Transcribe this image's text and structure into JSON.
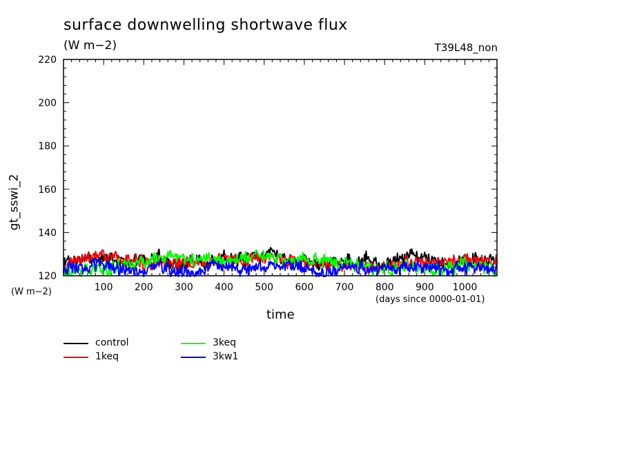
{
  "chart_data": {
    "type": "line",
    "title": "surface downwelling shortwave flux",
    "units": "(W m−2)",
    "run_label": "T39L48_non",
    "ylabel": "gt_sswi_2",
    "ylabel_units": "(W m−2)",
    "xlabel": "time",
    "xlabel_units": "(days since 0000-01-01)",
    "xlim": [
      0,
      1080
    ],
    "ylim": [
      120,
      220
    ],
    "x_ticks": [
      100,
      200,
      300,
      400,
      500,
      600,
      700,
      800,
      900,
      1000
    ],
    "y_ticks": [
      120,
      140,
      160,
      180,
      200,
      220
    ],
    "x_ticks_labels": [
      "100",
      "200",
      "300",
      "400",
      "500",
      "600",
      "700",
      "800",
      "900",
      "1000"
    ],
    "y_ticks_labels": [
      "120",
      "140",
      "160",
      "180",
      "200",
      "220"
    ],
    "legend_placement": "below-left",
    "series": [
      {
        "name": "control",
        "color": "#000000",
        "x": [
          0,
          40,
          80,
          120,
          160,
          200,
          240,
          280,
          320,
          360,
          400,
          440,
          480,
          520,
          560,
          600,
          640,
          680,
          720,
          760,
          800,
          840,
          880,
          920,
          960,
          1000,
          1040,
          1080
        ],
        "values": [
          125,
          128,
          127,
          128,
          126,
          127,
          129,
          124,
          127,
          125,
          128,
          127,
          129,
          132,
          126,
          127,
          125,
          127,
          126,
          128,
          124,
          129,
          130,
          127,
          125,
          128,
          127,
          126
        ]
      },
      {
        "name": "1keq",
        "color": "#ff0000",
        "x": [
          0,
          40,
          80,
          120,
          160,
          200,
          240,
          280,
          320,
          360,
          400,
          440,
          480,
          520,
          560,
          600,
          640,
          680,
          720,
          760,
          800,
          840,
          880,
          920,
          960,
          1000,
          1040,
          1080
        ],
        "values": [
          124,
          127,
          129,
          129,
          127,
          126,
          127,
          126,
          125,
          126,
          127,
          127,
          128,
          129,
          127,
          126,
          125,
          126,
          125,
          124,
          124,
          126,
          126,
          125,
          126,
          127,
          127,
          126
        ]
      },
      {
        "name": "3keq",
        "color": "#00ff00",
        "x": [
          0,
          40,
          80,
          120,
          160,
          200,
          240,
          280,
          320,
          360,
          400,
          440,
          480,
          520,
          560,
          600,
          640,
          680,
          720,
          760,
          800,
          840,
          880,
          920,
          960,
          1000,
          1040,
          1080
        ],
        "values": [
          121,
          122,
          123,
          124,
          125,
          127,
          128,
          129,
          127,
          128,
          127,
          128,
          129,
          128,
          127,
          128,
          127,
          126,
          125,
          124,
          123,
          125,
          124,
          123,
          124,
          125,
          124,
          123
        ]
      },
      {
        "name": "3kw1",
        "color": "#0000ff",
        "x": [
          0,
          40,
          80,
          120,
          160,
          200,
          240,
          280,
          320,
          360,
          400,
          440,
          480,
          520,
          560,
          600,
          640,
          680,
          720,
          760,
          800,
          840,
          880,
          920,
          960,
          1000,
          1040,
          1080
        ],
        "values": [
          123,
          124,
          125,
          124,
          123,
          123,
          124,
          122,
          121,
          124,
          125,
          123,
          124,
          125,
          124,
          123,
          122,
          123,
          124,
          123,
          124,
          123,
          124,
          124,
          123,
          124,
          124,
          123
        ]
      }
    ]
  }
}
